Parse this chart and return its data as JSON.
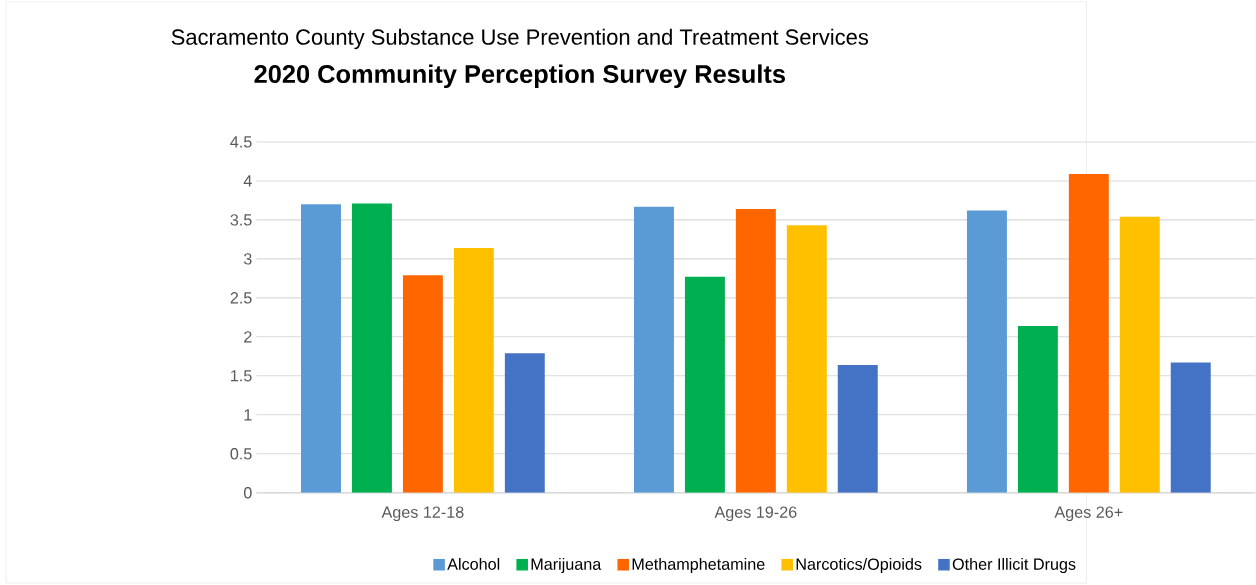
{
  "chart_data": {
    "type": "bar",
    "title": "Sacramento County Substance Use Prevention and Treatment Services",
    "subtitle": "2020 Community Perception Survey Results",
    "categories": [
      "Ages 12-18",
      "Ages 19-26",
      "Ages 26+"
    ],
    "series": [
      {
        "name": "Alcohol",
        "color": "#5b9bd5",
        "values": [
          3.7,
          3.67,
          3.62
        ]
      },
      {
        "name": "Marijuana",
        "color": "#00b050",
        "values": [
          3.71,
          2.77,
          2.14
        ]
      },
      {
        "name": "Methamphetamine",
        "color": "#ff6600",
        "values": [
          2.79,
          3.64,
          4.09
        ]
      },
      {
        "name": "Narcotics/Opioids",
        "color": "#ffc000",
        "values": [
          3.14,
          3.43,
          3.54
        ]
      },
      {
        "name": "Other Illicit Drugs",
        "color": "#4472c4",
        "values": [
          1.79,
          1.64,
          1.67
        ]
      }
    ],
    "ylim": [
      0,
      4.5
    ],
    "yticks": [
      0,
      0.5,
      1,
      1.5,
      2,
      2.5,
      3,
      3.5,
      4,
      4.5
    ],
    "grid": "y",
    "legend": "bottom"
  }
}
